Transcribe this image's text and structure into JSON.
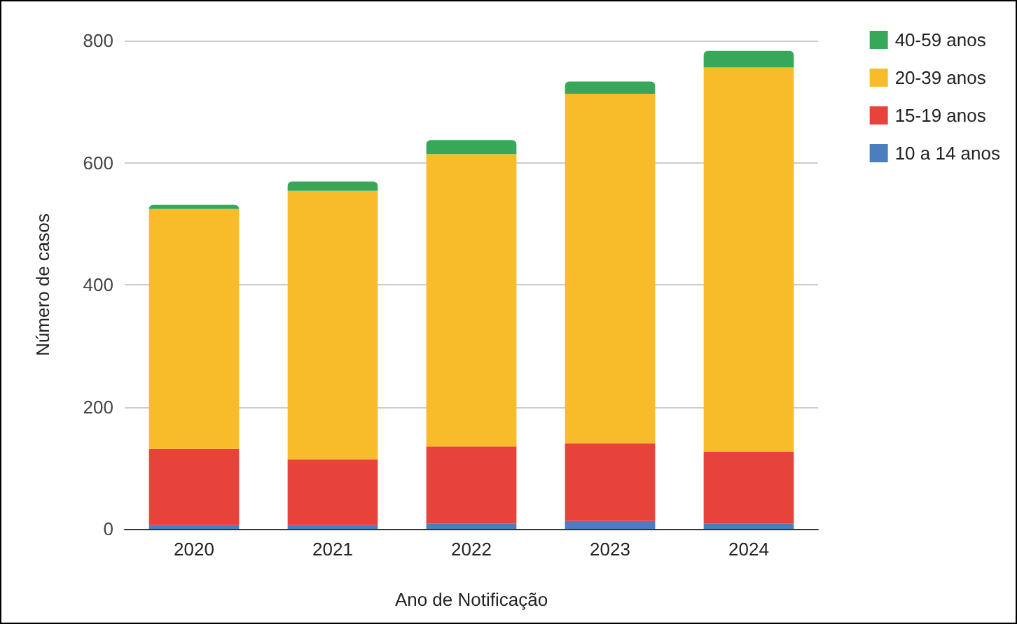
{
  "chart_data": {
    "type": "bar",
    "xlabel": "Ano de Notificação",
    "ylabel": "Número de casos",
    "categories": [
      "2020",
      "2021",
      "2022",
      "2023",
      "2024"
    ],
    "stacked": true,
    "series": [
      {
        "name": "10 a 14 anos",
        "color": "#4a7ebf",
        "values": [
          6,
          6,
          9,
          13,
          9
        ]
      },
      {
        "name": "15-19 anos",
        "color": "#e8433a",
        "values": [
          125,
          108,
          126,
          127,
          117
        ]
      },
      {
        "name": "20-39 anos",
        "color": "#f8bc2b",
        "values": [
          393,
          440,
          479,
          573,
          630
        ]
      },
      {
        "name": "40-59 anos",
        "color": "#37a85a",
        "values": [
          7,
          15,
          23,
          20,
          27
        ]
      }
    ],
    "ylim": [
      0,
      800
    ],
    "yticks": [
      0,
      200,
      400,
      600,
      800
    ],
    "grid": "y",
    "legend": "top right"
  }
}
